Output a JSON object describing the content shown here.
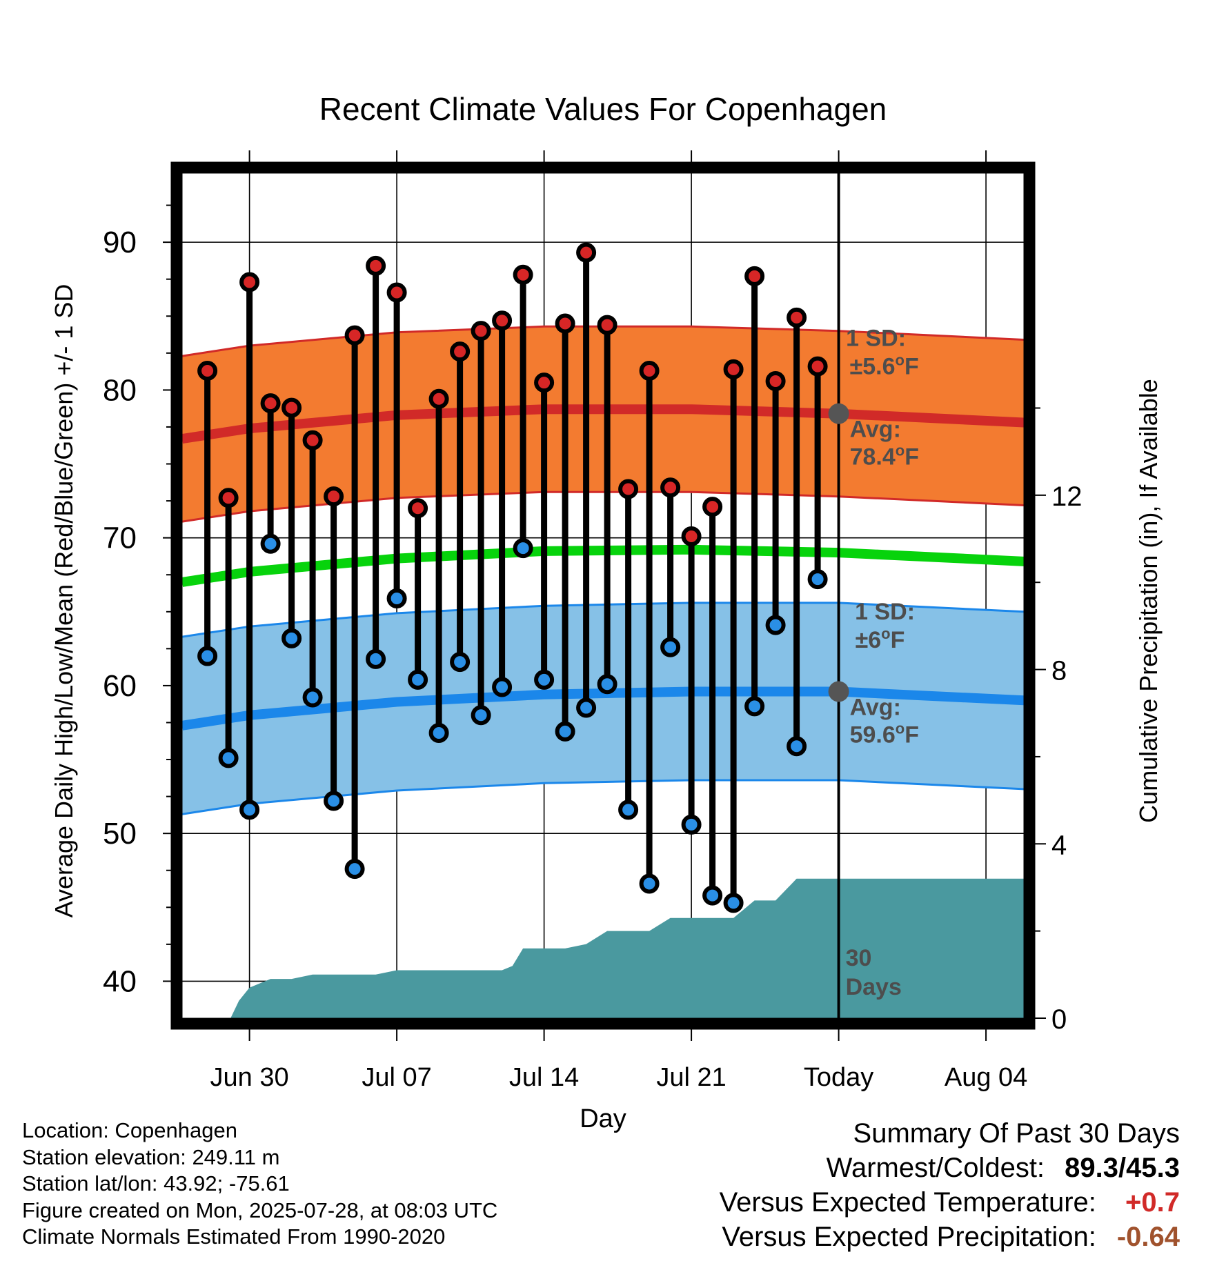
{
  "chart_data": {
    "type": "line",
    "title": "Recent Climate Values For Copenhagen",
    "xlabel": "Day",
    "ylabel": "Average Daily High/Low/Mean (Red/Blue/Green) +/- 1 SD",
    "y2label": "Cumulative Precipitation (in), If Available",
    "ylim": [
      37.5,
      95
    ],
    "y2lim": [
      0,
      19.5
    ],
    "y_ticks": [
      "40",
      "50",
      "60",
      "70",
      "80",
      "90"
    ],
    "y2_ticks": [
      "0",
      "4",
      "8",
      "12"
    ],
    "x_ticks": [
      {
        "day": 30,
        "label": "Jun 30"
      },
      {
        "day": 37,
        "label": "Jul 07"
      },
      {
        "day": 44,
        "label": "Jul 14"
      },
      {
        "day": 51,
        "label": "Jul 21"
      },
      {
        "day": 58,
        "label": "Today"
      },
      {
        "day": 65,
        "label": "Aug 04"
      }
    ],
    "xlim": [
      26.8,
      66.8
    ],
    "grid": true,
    "today_day": 58,
    "highs": [
      {
        "day": 28,
        "value": 81.3
      },
      {
        "day": 29,
        "value": 72.7
      },
      {
        "day": 30,
        "value": 87.3
      },
      {
        "day": 31,
        "value": 79.1
      },
      {
        "day": 32,
        "value": 78.8
      },
      {
        "day": 33,
        "value": 76.6
      },
      {
        "day": 34,
        "value": 72.8
      },
      {
        "day": 35,
        "value": 83.7
      },
      {
        "day": 36,
        "value": 88.4
      },
      {
        "day": 37,
        "value": 86.6
      },
      {
        "day": 38,
        "value": 72.0
      },
      {
        "day": 39,
        "value": 79.4
      },
      {
        "day": 40,
        "value": 82.6
      },
      {
        "day": 41,
        "value": 84.0
      },
      {
        "day": 42,
        "value": 84.7
      },
      {
        "day": 43,
        "value": 87.8
      },
      {
        "day": 44,
        "value": 80.5
      },
      {
        "day": 45,
        "value": 84.5
      },
      {
        "day": 46,
        "value": 89.3
      },
      {
        "day": 47,
        "value": 84.4
      },
      {
        "day": 48,
        "value": 73.3
      },
      {
        "day": 49,
        "value": 81.3
      },
      {
        "day": 50,
        "value": 73.4
      },
      {
        "day": 51,
        "value": 70.1
      },
      {
        "day": 52,
        "value": 72.1
      },
      {
        "day": 53,
        "value": 81.4
      },
      {
        "day": 54,
        "value": 87.7
      },
      {
        "day": 55,
        "value": 80.6
      },
      {
        "day": 56,
        "value": 84.9
      },
      {
        "day": 57,
        "value": 81.6
      }
    ],
    "lows": [
      {
        "day": 28,
        "value": 62.0
      },
      {
        "day": 29,
        "value": 55.1
      },
      {
        "day": 30,
        "value": 51.6
      },
      {
        "day": 31,
        "value": 69.6
      },
      {
        "day": 32,
        "value": 63.2
      },
      {
        "day": 33,
        "value": 59.2
      },
      {
        "day": 34,
        "value": 52.2
      },
      {
        "day": 35,
        "value": 47.6
      },
      {
        "day": 36,
        "value": 61.8
      },
      {
        "day": 37,
        "value": 65.9
      },
      {
        "day": 38,
        "value": 60.4
      },
      {
        "day": 39,
        "value": 56.8
      },
      {
        "day": 40,
        "value": 61.6
      },
      {
        "day": 41,
        "value": 58.0
      },
      {
        "day": 42,
        "value": 59.9
      },
      {
        "day": 43,
        "value": 69.3
      },
      {
        "day": 44,
        "value": 60.4
      },
      {
        "day": 45,
        "value": 56.9
      },
      {
        "day": 46,
        "value": 58.5
      },
      {
        "day": 47,
        "value": 60.1
      },
      {
        "day": 48,
        "value": 51.6
      },
      {
        "day": 49,
        "value": 46.6
      },
      {
        "day": 50,
        "value": 62.6
      },
      {
        "day": 51,
        "value": 50.6
      },
      {
        "day": 52,
        "value": 45.8
      },
      {
        "day": 53,
        "value": 45.3
      },
      {
        "day": 54,
        "value": 58.6
      },
      {
        "day": 55,
        "value": 64.1
      },
      {
        "day": 56,
        "value": 55.9
      },
      {
        "day": 57,
        "value": 67.2
      }
    ],
    "normal_high": [
      {
        "day": 26.8,
        "value": 76.7
      },
      {
        "day": 30,
        "value": 77.4
      },
      {
        "day": 37,
        "value": 78.3
      },
      {
        "day": 44,
        "value": 78.7
      },
      {
        "day": 51,
        "value": 78.7
      },
      {
        "day": 58,
        "value": 78.4
      },
      {
        "day": 66.8,
        "value": 77.8
      }
    ],
    "normal_high_sd": 5.6,
    "normal_low": [
      {
        "day": 26.8,
        "value": 57.3
      },
      {
        "day": 30,
        "value": 58.0
      },
      {
        "day": 37,
        "value": 58.9
      },
      {
        "day": 44,
        "value": 59.4
      },
      {
        "day": 51,
        "value": 59.6
      },
      {
        "day": 58,
        "value": 59.6
      },
      {
        "day": 66.8,
        "value": 59.0
      }
    ],
    "normal_low_sd": 6,
    "normal_mean": [
      {
        "day": 26.8,
        "value": 67.0
      },
      {
        "day": 30,
        "value": 67.7
      },
      {
        "day": 37,
        "value": 68.6
      },
      {
        "day": 44,
        "value": 69.1
      },
      {
        "day": 51,
        "value": 69.2
      },
      {
        "day": 58,
        "value": 69.0
      },
      {
        "day": 66.8,
        "value": 68.4
      }
    ],
    "precip_cumulative": [
      {
        "day": 26.8,
        "value": 0
      },
      {
        "day": 29.1,
        "value": 0
      },
      {
        "day": 29.5,
        "value": 0.4
      },
      {
        "day": 30,
        "value": 0.7
      },
      {
        "day": 31,
        "value": 0.9
      },
      {
        "day": 32,
        "value": 0.9
      },
      {
        "day": 33,
        "value": 1.0
      },
      {
        "day": 36,
        "value": 1.0
      },
      {
        "day": 37,
        "value": 1.1
      },
      {
        "day": 42,
        "value": 1.1
      },
      {
        "day": 42.5,
        "value": 1.2
      },
      {
        "day": 43,
        "value": 1.6
      },
      {
        "day": 45,
        "value": 1.6
      },
      {
        "day": 46,
        "value": 1.7
      },
      {
        "day": 47,
        "value": 2.0
      },
      {
        "day": 49,
        "value": 2.0
      },
      {
        "day": 50,
        "value": 2.3
      },
      {
        "day": 53,
        "value": 2.3
      },
      {
        "day": 54,
        "value": 2.7
      },
      {
        "day": 55,
        "value": 2.7
      },
      {
        "day": 56,
        "value": 3.2
      },
      {
        "day": 66.8,
        "value": 3.2
      }
    ],
    "annotations": {
      "high_sd_label": "1 SD:",
      "high_sd_value": "±5.6",
      "high_avg_label": "Avg:",
      "high_avg_value": "78.4",
      "low_sd_label": "1 SD:",
      "low_sd_value": "±6",
      "low_avg_label": "Avg:",
      "low_avg_value": "59.6",
      "degree_mark": "o",
      "unit": "F",
      "window_line1": "30",
      "window_line2": "Days"
    },
    "colors": {
      "high_band": "#f37b30",
      "high_line": "#d12a28",
      "low_band": "#86c1e7",
      "low_line": "#1b87ea",
      "mean_line": "#07d30c",
      "precip": "#4a999f",
      "high_point": "#d72626",
      "low_point": "#2a8fe6",
      "avg_marker": "#555555",
      "annotation_text": "#4d4d4d"
    }
  },
  "footer": {
    "location": "Location: Copenhagen",
    "elevation": "Station elevation: 249.11 m",
    "latlon": "Station lat/lon: 43.92; -75.61",
    "created": "Figure created on Mon, 2025-07-28, at 08:03 UTC",
    "normals": "Climate Normals Estimated From 1990-2020"
  },
  "summary": {
    "title": "Summary Of Past 30 Days",
    "warm_cold_label": "Warmest/Coldest:",
    "warm_cold_value": "89.3/45.3",
    "temp_label": "Versus Expected Temperature:",
    "temp_value": "+0.7",
    "temp_color": "#d12a28",
    "precip_label": "Versus Expected Precipitation:",
    "precip_value": "-0.64",
    "precip_color": "#a0522d"
  }
}
